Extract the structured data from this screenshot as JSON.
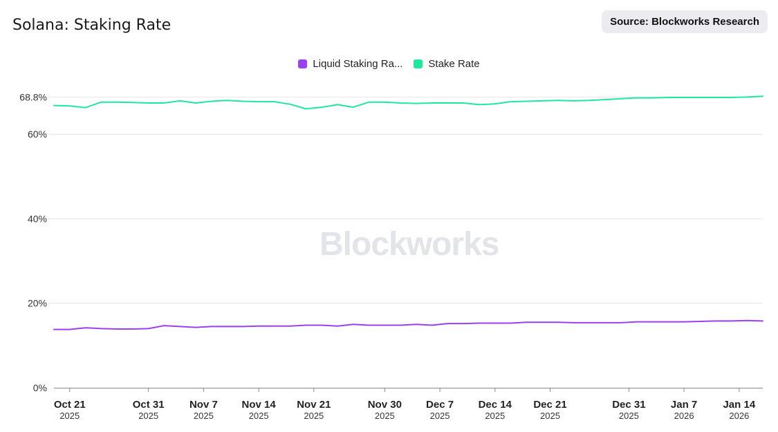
{
  "header": {
    "title": "Solana: Staking Rate",
    "source": "Source: Blockworks Research"
  },
  "watermark": "Blockworks",
  "chart_data": {
    "type": "line",
    "title": "Solana: Staking Rate",
    "ylabel": "",
    "xlabel": "",
    "ylim": [
      0,
      70
    ],
    "grid": true,
    "legend_position": "top-center",
    "y_ticks": [
      {
        "value": 0,
        "label": "0%"
      },
      {
        "value": 20,
        "label": "20%"
      },
      {
        "value": 40,
        "label": "40%"
      },
      {
        "value": 60,
        "label": "60%"
      },
      {
        "value": 68.8,
        "label": "68.8%"
      }
    ],
    "x_ticks": [
      {
        "date": "2025-10-21",
        "label": "Oct 21",
        "year": "2025"
      },
      {
        "date": "2025-10-31",
        "label": "Oct 31",
        "year": "2025"
      },
      {
        "date": "2025-11-07",
        "label": "Nov 7",
        "year": "2025"
      },
      {
        "date": "2025-11-14",
        "label": "Nov 14",
        "year": "2025"
      },
      {
        "date": "2025-11-21",
        "label": "Nov 21",
        "year": "2025"
      },
      {
        "date": "2025-11-30",
        "label": "Nov 30",
        "year": "2025"
      },
      {
        "date": "2025-12-07",
        "label": "Dec 7",
        "year": "2025"
      },
      {
        "date": "2025-12-14",
        "label": "Dec 14",
        "year": "2025"
      },
      {
        "date": "2025-12-21",
        "label": "Dec 21",
        "year": "2025"
      },
      {
        "date": "2025-12-31",
        "label": "Dec 31",
        "year": "2025"
      },
      {
        "date": "2026-01-07",
        "label": "Jan 7",
        "year": "2026"
      },
      {
        "date": "2026-01-14",
        "label": "Jan 14",
        "year": "2026"
      }
    ],
    "x": [
      "2025-10-19",
      "2025-10-21",
      "2025-10-23",
      "2025-10-25",
      "2025-10-27",
      "2025-10-29",
      "2025-10-31",
      "2025-11-02",
      "2025-11-04",
      "2025-11-06",
      "2025-11-08",
      "2025-11-10",
      "2025-11-12",
      "2025-11-14",
      "2025-11-16",
      "2025-11-18",
      "2025-11-20",
      "2025-11-22",
      "2025-11-24",
      "2025-11-26",
      "2025-11-28",
      "2025-11-30",
      "2025-12-02",
      "2025-12-04",
      "2025-12-06",
      "2025-12-08",
      "2025-12-10",
      "2025-12-12",
      "2025-12-14",
      "2025-12-16",
      "2025-12-18",
      "2025-12-20",
      "2025-12-22",
      "2025-12-24",
      "2025-12-26",
      "2025-12-28",
      "2025-12-30",
      "2026-01-01",
      "2026-01-03",
      "2026-01-05",
      "2026-01-07",
      "2026-01-09",
      "2026-01-11",
      "2026-01-13",
      "2026-01-15",
      "2026-01-17"
    ],
    "series": [
      {
        "name": "Liquid Staking Ra...",
        "color": "#9b3ff2",
        "values": [
          13.8,
          13.8,
          14.2,
          14.0,
          13.9,
          13.9,
          14.0,
          14.7,
          14.5,
          14.3,
          14.5,
          14.5,
          14.5,
          14.6,
          14.6,
          14.6,
          14.8,
          14.8,
          14.6,
          15.0,
          14.8,
          14.8,
          14.8,
          15.0,
          14.8,
          15.2,
          15.2,
          15.3,
          15.3,
          15.3,
          15.5,
          15.5,
          15.5,
          15.4,
          15.4,
          15.4,
          15.4,
          15.6,
          15.6,
          15.6,
          15.6,
          15.7,
          15.8,
          15.8,
          15.9,
          15.8
        ]
      },
      {
        "name": "Stake Rate",
        "color": "#1ee89c",
        "values": [
          66.8,
          66.7,
          66.3,
          67.6,
          67.6,
          67.5,
          67.4,
          67.4,
          67.9,
          67.4,
          67.8,
          68.0,
          67.8,
          67.7,
          67.7,
          67.1,
          66.0,
          66.4,
          67.0,
          66.4,
          67.6,
          67.6,
          67.4,
          67.3,
          67.4,
          67.4,
          67.4,
          67.0,
          67.2,
          67.7,
          67.8,
          67.9,
          68.0,
          67.9,
          68.0,
          68.2,
          68.4,
          68.6,
          68.6,
          68.7,
          68.7,
          68.7,
          68.7,
          68.7,
          68.8,
          69.0
        ]
      }
    ]
  }
}
